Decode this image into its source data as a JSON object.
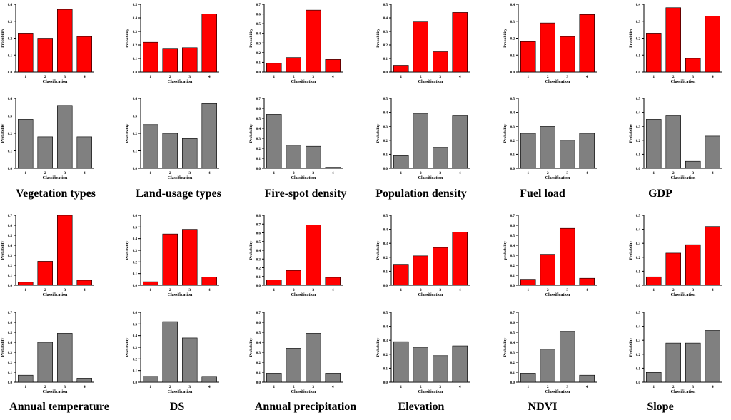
{
  "colors": {
    "risk": "#ff0000",
    "sample": "#808080"
  },
  "common": {
    "xlabel": "Classification",
    "ylabel": "Probability",
    "categories": [
      "1",
      "2",
      "3",
      "4"
    ]
  },
  "titles": [
    "Vegetation types",
    "Land-usage types",
    "Fire-spot density",
    "Population density",
    "Fuel load",
    "GDP",
    "Annual temperature",
    "DS",
    "Annual precipitation",
    "Elevation",
    "NDVI",
    "Slope"
  ],
  "chart_data": [
    {
      "type": "bar",
      "factor": "Vegetation types",
      "series": "red",
      "ylabel": "Probability",
      "ylim": [
        0,
        0.4
      ],
      "yticks": [
        "0.0",
        "0.1",
        "0.2",
        "0.3",
        "0.4"
      ],
      "categories": [
        "1",
        "2",
        "3",
        "4"
      ],
      "values": [
        0.23,
        0.2,
        0.37,
        0.21
      ]
    },
    {
      "type": "bar",
      "factor": "Land-usage types",
      "series": "red",
      "ylabel": "Probability",
      "ylim": [
        0,
        0.5
      ],
      "yticks": [
        "0.0",
        "0.1",
        "0.2",
        "0.3",
        "0.4",
        "0.5"
      ],
      "categories": [
        "1",
        "2",
        "3",
        "4"
      ],
      "values": [
        0.22,
        0.17,
        0.18,
        0.43
      ]
    },
    {
      "type": "bar",
      "factor": "Fire-spot density",
      "series": "red",
      "ylabel": "Probability",
      "ylim": [
        0,
        0.7
      ],
      "yticks": [
        "0.0",
        "0.1",
        "0.2",
        "0.3",
        "0.4",
        "0.5",
        "0.6",
        "0.7"
      ],
      "categories": [
        "1",
        "2",
        "3",
        "4"
      ],
      "values": [
        0.09,
        0.15,
        0.64,
        0.13
      ]
    },
    {
      "type": "bar",
      "factor": "Population density",
      "series": "red",
      "ylabel": "Probability",
      "ylim": [
        0,
        0.5
      ],
      "yticks": [
        "0.0",
        "0.1",
        "0.2",
        "0.3",
        "0.4",
        "0.5"
      ],
      "categories": [
        "1",
        "2",
        "3",
        "4"
      ],
      "values": [
        0.05,
        0.37,
        0.15,
        0.44
      ]
    },
    {
      "type": "bar",
      "factor": "Fuel load",
      "series": "red",
      "ylabel": "Probability",
      "ylim": [
        0,
        0.4
      ],
      "yticks": [
        "0.0",
        "0.1",
        "0.2",
        "0.3",
        "0.4"
      ],
      "categories": [
        "1",
        "2",
        "3",
        "4"
      ],
      "values": [
        0.18,
        0.29,
        0.21,
        0.34
      ]
    },
    {
      "type": "bar",
      "factor": "GDP",
      "series": "red",
      "ylabel": "Probability",
      "ylim": [
        0,
        0.4
      ],
      "yticks": [
        "0.0",
        "0.1",
        "0.2",
        "0.3",
        "0.4"
      ],
      "categories": [
        "1",
        "2",
        "3",
        "4"
      ],
      "values": [
        0.23,
        0.38,
        0.08,
        0.33
      ]
    },
    {
      "type": "bar",
      "factor": "Vegetation types",
      "series": "gray",
      "ylabel": "Probability",
      "ylim": [
        0,
        0.4
      ],
      "yticks": [
        "0.0",
        "0.1",
        "0.2",
        "0.3",
        "0.4"
      ],
      "categories": [
        "1",
        "2",
        "3",
        "4"
      ],
      "values": [
        0.28,
        0.18,
        0.36,
        0.18
      ]
    },
    {
      "type": "bar",
      "factor": "Land-usage types",
      "series": "gray",
      "ylabel": "Probability",
      "ylim": [
        0,
        0.4
      ],
      "yticks": [
        "0.0",
        "0.1",
        "0.2",
        "0.3",
        "0.4"
      ],
      "categories": [
        "1",
        "2",
        "3",
        "4"
      ],
      "values": [
        0.25,
        0.2,
        0.17,
        0.37
      ]
    },
    {
      "type": "bar",
      "factor": "Fire-spot density",
      "series": "gray",
      "ylabel": "Probability",
      "ylim": [
        0,
        0.7
      ],
      "yticks": [
        "0.0",
        "0.1",
        "0.2",
        "0.3",
        "0.4",
        "0.5",
        "0.6",
        "0.7"
      ],
      "categories": [
        "1",
        "2",
        "3",
        "4"
      ],
      "values": [
        0.54,
        0.23,
        0.22,
        0.01
      ]
    },
    {
      "type": "bar",
      "factor": "Population density",
      "series": "gray",
      "ylabel": "Probability",
      "ylim": [
        0,
        0.5
      ],
      "yticks": [
        "0.0",
        "0.1",
        "0.2",
        "0.3",
        "0.4",
        "0.5"
      ],
      "categories": [
        "1",
        "2",
        "3",
        "4"
      ],
      "values": [
        0.09,
        0.39,
        0.15,
        0.38
      ]
    },
    {
      "type": "bar",
      "factor": "Fuel load",
      "series": "gray",
      "ylabel": "Probability",
      "ylim": [
        0,
        0.5
      ],
      "yticks": [
        "0.0",
        "0.1",
        "0.2",
        "0.3",
        "0.4",
        "0.5"
      ],
      "categories": [
        "1",
        "2",
        "3",
        "4"
      ],
      "values": [
        0.25,
        0.3,
        0.2,
        0.25
      ]
    },
    {
      "type": "bar",
      "factor": "GDP",
      "series": "gray",
      "ylabel": "Probability",
      "ylim": [
        0,
        0.5
      ],
      "yticks": [
        "0.0",
        "0.1",
        "0.2",
        "0.3",
        "0.4",
        "0.5"
      ],
      "categories": [
        "1",
        "2",
        "3",
        "4"
      ],
      "values": [
        0.35,
        0.38,
        0.05,
        0.23
      ]
    },
    {
      "type": "bar",
      "factor": "Annual temperature",
      "series": "red",
      "ylabel": "Probability",
      "ylim": [
        0,
        0.7
      ],
      "yticks": [
        "0.0",
        "0.1",
        "0.2",
        "0.3",
        "0.4",
        "0.5",
        "0.6",
        "0.7"
      ],
      "categories": [
        "1",
        "2",
        "3",
        "4"
      ],
      "values": [
        0.03,
        0.24,
        0.7,
        0.05
      ]
    },
    {
      "type": "bar",
      "factor": "DS",
      "series": "red",
      "ylabel": "Probability",
      "ylim": [
        0,
        0.6
      ],
      "yticks": [
        "0.0",
        "0.1",
        "0.2",
        "0.3",
        "0.4",
        "0.5",
        "0.6"
      ],
      "categories": [
        "1",
        "2",
        "3",
        "4"
      ],
      "values": [
        0.03,
        0.44,
        0.48,
        0.07
      ]
    },
    {
      "type": "bar",
      "factor": "Annual precipitation",
      "series": "red",
      "ylabel": "Probability",
      "ylim": [
        0,
        0.8
      ],
      "yticks": [
        "0.0",
        "0.1",
        "0.2",
        "0.3",
        "0.4",
        "0.5",
        "0.6",
        "0.7",
        "0.8"
      ],
      "categories": [
        "1",
        "2",
        "3",
        "4"
      ],
      "values": [
        0.06,
        0.17,
        0.69,
        0.09
      ]
    },
    {
      "type": "bar",
      "factor": "Elevation",
      "series": "red",
      "ylabel": "Probability",
      "ylim": [
        0,
        0.5
      ],
      "yticks": [
        "0.0",
        "0.1",
        "0.2",
        "0.3",
        "0.4",
        "0.5"
      ],
      "categories": [
        "1",
        "2",
        "3",
        "4"
      ],
      "values": [
        0.15,
        0.21,
        0.27,
        0.38
      ]
    },
    {
      "type": "bar",
      "factor": "NDVI",
      "series": "red",
      "ylabel": "probability",
      "ylim": [
        0,
        0.7
      ],
      "yticks": [
        "0.0",
        "0.1",
        "0.2",
        "0.3",
        "0.4",
        "0.5",
        "0.6",
        "0.7"
      ],
      "categories": [
        "1",
        "2",
        "3",
        "4"
      ],
      "values": [
        0.06,
        0.31,
        0.57,
        0.07
      ]
    },
    {
      "type": "bar",
      "factor": "Slope",
      "series": "red",
      "ylabel": "Probability",
      "ylim": [
        0,
        0.5
      ],
      "yticks": [
        "0.0",
        "0.1",
        "0.2",
        "0.3",
        "0.4",
        "0.5"
      ],
      "categories": [
        "1",
        "2",
        "3",
        "4"
      ],
      "values": [
        0.06,
        0.23,
        0.29,
        0.42
      ]
    },
    {
      "type": "bar",
      "factor": "Annual temperature",
      "series": "gray",
      "ylabel": "Probability",
      "ylim": [
        0,
        0.7
      ],
      "yticks": [
        "0.0",
        "0.1",
        "0.2",
        "0.3",
        "0.4",
        "0.5",
        "0.6",
        "0.7"
      ],
      "categories": [
        "1",
        "2",
        "3",
        "4"
      ],
      "values": [
        0.07,
        0.4,
        0.49,
        0.04
      ]
    },
    {
      "type": "bar",
      "factor": "DS",
      "series": "gray",
      "ylabel": "Probability",
      "ylim": [
        0,
        0.6
      ],
      "yticks": [
        "0.0",
        "0.1",
        "0.2",
        "0.3",
        "0.4",
        "0.5",
        "0.6"
      ],
      "categories": [
        "1",
        "2",
        "3",
        "4"
      ],
      "values": [
        0.05,
        0.52,
        0.38,
        0.05
      ]
    },
    {
      "type": "bar",
      "factor": "Annual precipitation",
      "series": "gray",
      "ylabel": "Probability",
      "ylim": [
        0,
        0.7
      ],
      "yticks": [
        "0.0",
        "0.1",
        "0.2",
        "0.3",
        "0.4",
        "0.5",
        "0.6",
        "0.7"
      ],
      "categories": [
        "1",
        "2",
        "3",
        "4"
      ],
      "values": [
        0.09,
        0.34,
        0.49,
        0.09
      ]
    },
    {
      "type": "bar",
      "factor": "Elevation",
      "series": "gray",
      "ylabel": "Probability",
      "ylim": [
        0,
        0.5
      ],
      "yticks": [
        "0.0",
        "0.1",
        "0.2",
        "0.3",
        "0.4",
        "0.5"
      ],
      "categories": [
        "1",
        "2",
        "3",
        "4"
      ],
      "values": [
        0.29,
        0.25,
        0.19,
        0.26
      ]
    },
    {
      "type": "bar",
      "factor": "NDVI",
      "series": "gray",
      "ylabel": "Probability",
      "ylim": [
        0,
        0.7
      ],
      "yticks": [
        "0.0",
        "0.1",
        "0.2",
        "0.3",
        "0.4",
        "0.5",
        "0.6",
        "0.7"
      ],
      "categories": [
        "1",
        "2",
        "3",
        "4"
      ],
      "values": [
        0.09,
        0.33,
        0.51,
        0.07
      ]
    },
    {
      "type": "bar",
      "factor": "Slope",
      "series": "gray",
      "ylabel": "Probability",
      "ylim": [
        0,
        0.5
      ],
      "yticks": [
        "0.0",
        "0.1",
        "0.2",
        "0.3",
        "0.4",
        "0.5"
      ],
      "categories": [
        "1",
        "2",
        "3",
        "4"
      ],
      "values": [
        0.07,
        0.28,
        0.28,
        0.37
      ]
    }
  ]
}
